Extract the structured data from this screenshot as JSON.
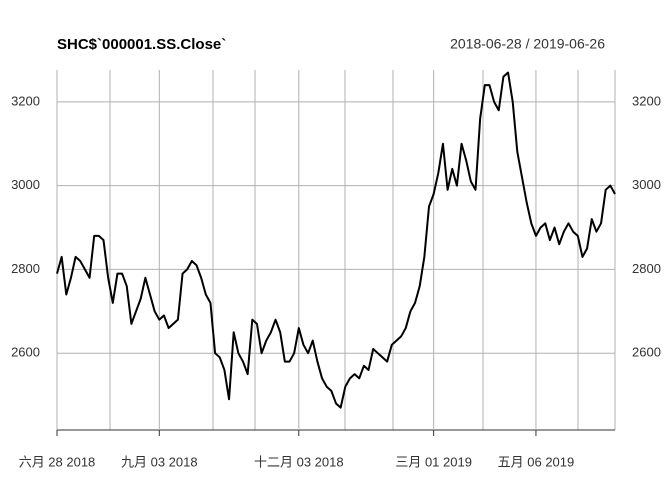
{
  "chart_data": {
    "type": "line",
    "title": "SHC$`000001.SS.Close`",
    "subtitle": "2018-06-28 / 2019-06-26",
    "categories": [
      "六月 28 2018",
      null,
      null,
      null,
      null,
      null,
      null,
      null,
      null,
      null,
      null,
      null,
      null,
      null,
      null,
      null,
      null,
      null,
      null,
      null,
      null,
      null,
      "九月 03 2018",
      null,
      null,
      null,
      null,
      null,
      null,
      null,
      null,
      null,
      null,
      null,
      null,
      null,
      null,
      null,
      null,
      null,
      null,
      null,
      null,
      null,
      null,
      null,
      null,
      null,
      null,
      null,
      null,
      null,
      "十二月 03 2018",
      null,
      null,
      null,
      null,
      null,
      null,
      null,
      null,
      null,
      null,
      null,
      null,
      null,
      null,
      null,
      null,
      null,
      null,
      null,
      null,
      null,
      null,
      null,
      null,
      null,
      null,
      null,
      null,
      "三月 01 2019",
      null,
      null,
      null,
      null,
      null,
      null,
      null,
      null,
      null,
      null,
      null,
      null,
      null,
      null,
      null,
      null,
      null,
      null,
      null,
      null,
      null,
      "五月 06 2019",
      null,
      null,
      null,
      null,
      null,
      null,
      null,
      null,
      null,
      null,
      null,
      null,
      null,
      null,
      null,
      null,
      null
    ],
    "series": [
      {
        "name": "SHC$`000001.SS.Close`",
        "color": "#000000",
        "values": [
          2790,
          2830,
          2740,
          2780,
          2830,
          2820,
          2800,
          2780,
          2880,
          2880,
          2870,
          2780,
          2720,
          2790,
          2790,
          2760,
          2670,
          2700,
          2730,
          2780,
          2740,
          2700,
          2680,
          2690,
          2660,
          2670,
          2680,
          2790,
          2800,
          2820,
          2810,
          2780,
          2740,
          2720,
          2600,
          2590,
          2560,
          2490,
          2650,
          2600,
          2580,
          2550,
          2680,
          2670,
          2600,
          2630,
          2650,
          2680,
          2650,
          2580,
          2580,
          2600,
          2660,
          2620,
          2600,
          2630,
          2580,
          2540,
          2520,
          2510,
          2480,
          2470,
          2520,
          2540,
          2550,
          2540,
          2570,
          2560,
          2610,
          2600,
          2590,
          2580,
          2620,
          2630,
          2640,
          2660,
          2700,
          2720,
          2760,
          2830,
          2950,
          2980,
          3030,
          3100,
          2990,
          3040,
          3000,
          3100,
          3060,
          3010,
          2990,
          3160,
          3240,
          3240,
          3200,
          3180,
          3260,
          3270,
          3200,
          3080,
          3020,
          2960,
          2910,
          2880,
          2900,
          2910,
          2870,
          2900,
          2860,
          2890,
          2910,
          2890,
          2880,
          2830,
          2850,
          2920,
          2890,
          2910,
          2990,
          3000,
          2980
        ]
      }
    ],
    "ylim": [
      2462,
      3276
    ],
    "yticks": [
      2600,
      2800,
      3000,
      3200
    ],
    "grid": true
  }
}
